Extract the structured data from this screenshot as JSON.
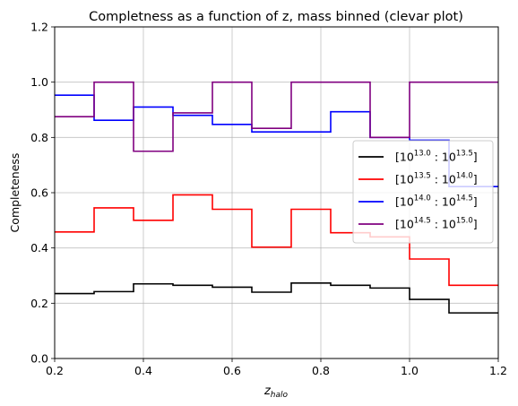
{
  "chart_data": {
    "type": "line",
    "drawstyle": "steps",
    "title": "Completness as a function of z, mass binned (clevar plot)",
    "xlabel": "z",
    "xlabel_sub": "halo",
    "ylabel": "Completeness",
    "xlim": [
      0.2,
      1.2
    ],
    "ylim": [
      0.0,
      1.2
    ],
    "xticks": [
      0.2,
      0.4,
      0.6,
      0.8,
      1.0,
      1.2
    ],
    "xtick_labels": [
      "0.2",
      "0.4",
      "0.6",
      "0.8",
      "1.0",
      "1.2"
    ],
    "yticks": [
      0.0,
      0.2,
      0.4,
      0.6,
      0.8,
      1.0,
      1.2
    ],
    "ytick_labels": [
      "0.0",
      "0.2",
      "0.4",
      "0.6",
      "0.8",
      "1.0",
      "1.2"
    ],
    "grid": true,
    "legend_placement": "center-right",
    "bin_edges": [
      0.2,
      0.2889,
      0.3778,
      0.4667,
      0.5556,
      0.6444,
      0.7333,
      0.8222,
      0.9111,
      1.0,
      1.0889,
      1.1778,
      1.2667
    ],
    "series": [
      {
        "label_parts": {
          "low": "13.0",
          "high": "13.5"
        },
        "color": "#000000",
        "values": [
          0.235,
          0.242,
          0.27,
          0.265,
          0.258,
          0.24,
          0.273,
          0.265,
          0.255,
          0.214,
          0.165,
          0.165
        ]
      },
      {
        "label_parts": {
          "low": "13.5",
          "high": "14.0"
        },
        "color": "#ff0000",
        "values": [
          0.458,
          0.545,
          0.5,
          0.592,
          0.54,
          0.403,
          0.54,
          0.455,
          0.44,
          0.36,
          0.265,
          0.265
        ]
      },
      {
        "label_parts": {
          "low": "14.0",
          "high": "14.5"
        },
        "color": "#0000ff",
        "values": [
          0.953,
          0.862,
          0.91,
          0.88,
          0.847,
          0.82,
          0.82,
          0.893,
          0.8,
          0.79,
          0.622,
          0.622
        ]
      },
      {
        "label_parts": {
          "low": "14.5",
          "high": "15.0"
        },
        "color": "#800080",
        "values": [
          0.875,
          1.0,
          0.75,
          0.889,
          1.0,
          0.833,
          1.0,
          1.0,
          0.8,
          1.0,
          1.0,
          1.0
        ]
      }
    ]
  }
}
